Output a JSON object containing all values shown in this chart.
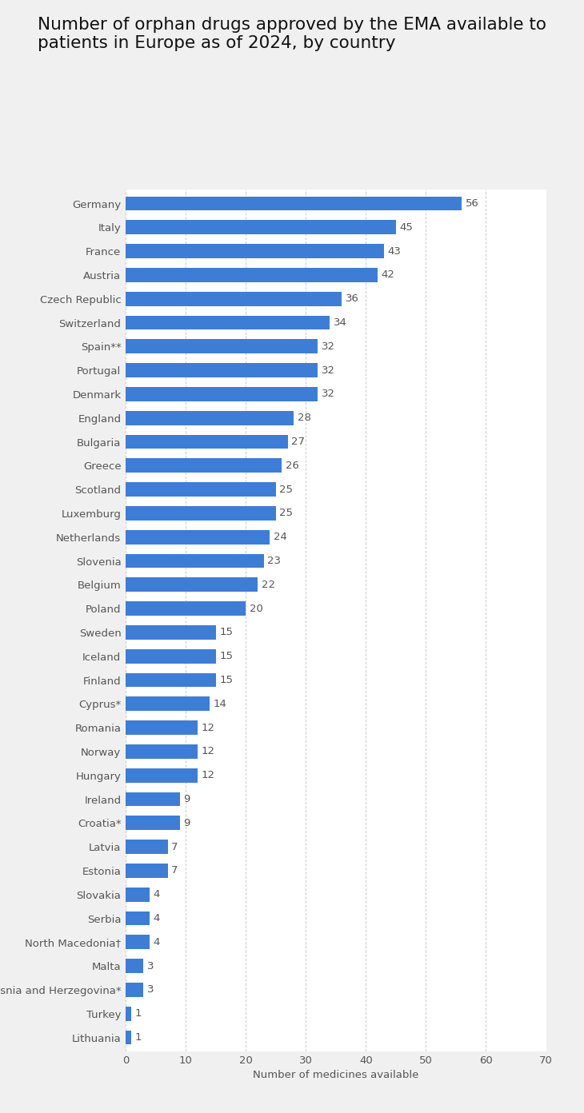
{
  "title": "Number of orphan drugs approved by the EMA available to\npatients in Europe as of 2024, by country",
  "xlabel": "Number of medicines available",
  "categories": [
    "Germany",
    "Italy",
    "France",
    "Austria",
    "Czech Republic",
    "Switzerland",
    "Spain**",
    "Portugal",
    "Denmark",
    "England",
    "Bulgaria",
    "Greece",
    "Scotland",
    "Luxemburg",
    "Netherlands",
    "Slovenia",
    "Belgium",
    "Poland",
    "Sweden",
    "Iceland",
    "Finland",
    "Cyprus*",
    "Romania",
    "Norway",
    "Hungary",
    "Ireland",
    "Croatia*",
    "Latvia",
    "Estonia",
    "Slovakia",
    "Serbia",
    "North Macedonia†",
    "Malta",
    "Bosnia and Herzegovina*",
    "Turkey",
    "Lithuania"
  ],
  "values": [
    56,
    45,
    43,
    42,
    36,
    34,
    32,
    32,
    32,
    28,
    27,
    26,
    25,
    25,
    24,
    23,
    22,
    20,
    15,
    15,
    15,
    14,
    12,
    12,
    12,
    9,
    9,
    7,
    7,
    4,
    4,
    4,
    3,
    3,
    1,
    1
  ],
  "bar_color": "#3d7dd6",
  "label_color": "#555555",
  "value_label_color": "#555555",
  "background_color": "#f0f0f0",
  "plot_background_color": "#ffffff",
  "grid_color": "#cccccc",
  "xlim": [
    0,
    70
  ],
  "xticks": [
    0,
    10,
    20,
    30,
    40,
    50,
    60,
    70
  ],
  "title_fontsize": 15.5,
  "label_fontsize": 9.5,
  "value_fontsize": 9.5,
  "xlabel_fontsize": 9.5,
  "bar_height": 0.6
}
